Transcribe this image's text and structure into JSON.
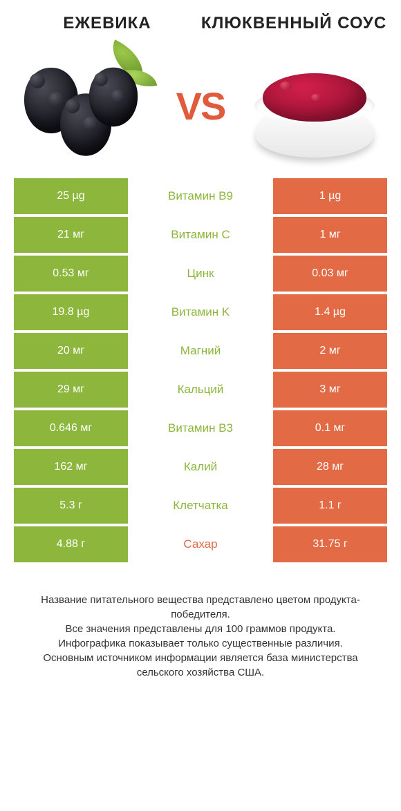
{
  "colors": {
    "green": "#8db63c",
    "orange": "#e26a45",
    "vs": "#e05a3c",
    "text_dark": "#333333",
    "white": "#ffffff"
  },
  "header": {
    "left_title": "ЕЖЕВИКА",
    "right_title": "КЛЮКВЕННЫЙ СОУС"
  },
  "vs_label": "VS",
  "rows": [
    {
      "left": "25 µg",
      "mid": "Витамин B9",
      "right": "1 µg",
      "winner": "left"
    },
    {
      "left": "21 мг",
      "mid": "Витамин C",
      "right": "1 мг",
      "winner": "left"
    },
    {
      "left": "0.53 мг",
      "mid": "Цинк",
      "right": "0.03 мг",
      "winner": "left"
    },
    {
      "left": "19.8 µg",
      "mid": "Витамин K",
      "right": "1.4 µg",
      "winner": "left"
    },
    {
      "left": "20 мг",
      "mid": "Магний",
      "right": "2 мг",
      "winner": "left"
    },
    {
      "left": "29 мг",
      "mid": "Кальций",
      "right": "3 мг",
      "winner": "left"
    },
    {
      "left": "0.646 мг",
      "mid": "Витамин B3",
      "right": "0.1 мг",
      "winner": "left"
    },
    {
      "left": "162 мг",
      "mid": "Калий",
      "right": "28 мг",
      "winner": "left"
    },
    {
      "left": "5.3 г",
      "mid": "Клетчатка",
      "right": "1.1 г",
      "winner": "left"
    },
    {
      "left": "4.88 г",
      "mid": "Сахар",
      "right": "31.75 г",
      "winner": "right"
    }
  ],
  "footer": {
    "line1": "Название питательного вещества представлено цветом продукта-победителя.",
    "line2": "Все значения представлены для 100 граммов продукта.",
    "line3": "Инфографика показывает только существенные различия.",
    "line4": "Основным источником информации является база министерства сельского хозяйства США."
  }
}
